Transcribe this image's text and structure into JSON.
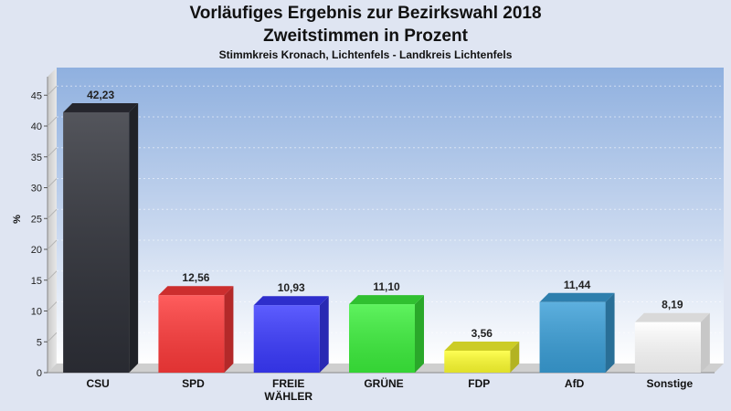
{
  "chart_data": {
    "type": "bar",
    "title": "Vorläufiges Ergebnis zur Bezirkswahl 2018",
    "subtitle": "Zweitstimmen in Prozent",
    "subsubtitle": "Stimmkreis Kronach, Lichtenfels - Landkreis Lichtenfels",
    "ylabel": "%",
    "xlabel": "",
    "ylim": [
      0,
      48
    ],
    "yticks": [
      0,
      5,
      10,
      15,
      20,
      25,
      30,
      35,
      40,
      45
    ],
    "grid": true,
    "categories": [
      [
        "CSU"
      ],
      [
        "SPD"
      ],
      [
        "FREIE",
        "WÄHLER"
      ],
      [
        "GRÜNE"
      ],
      [
        "FDP"
      ],
      [
        "AfD"
      ],
      [
        "Sonstige"
      ]
    ],
    "values": [
      42.23,
      12.56,
      10.93,
      11.1,
      3.56,
      11.44,
      8.19
    ],
    "value_labels": [
      "42,23",
      "12,56",
      "10,93",
      "11,10",
      "3,56",
      "11,44",
      "8,19"
    ],
    "colors": [
      "#2e3038",
      "#ff3a3a",
      "#3a3aff",
      "#3cf03c",
      "#ffff30",
      "#3a9fd8",
      "#ffffff"
    ]
  }
}
